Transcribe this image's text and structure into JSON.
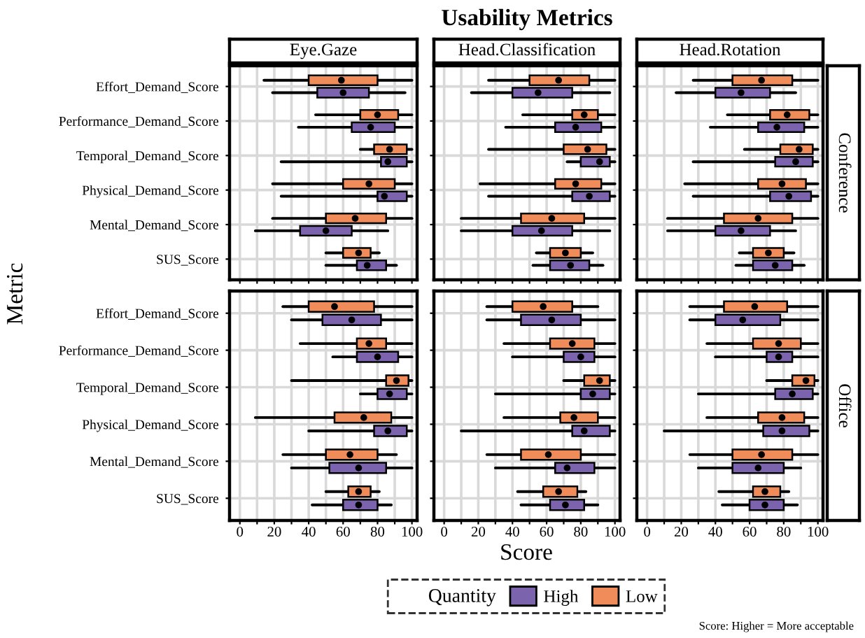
{
  "chart_data": [
    {
      "type": "box",
      "orientation": "horizontal",
      "subtitle": "Eye.Gaze",
      "ylabel": "Metric",
      "legend": "bottom",
      "legend_title": "Quantity",
      "tick_labels": "y",
      "grid": true,
      "xlim": [
        -6,
        103
      ],
      "xticks": [
        0,
        {
          "value": 10,
          "label": null
        },
        20,
        {
          "value": 30,
          "label": null
        },
        40,
        {
          "value": 50,
          "label": null
        },
        60,
        {
          "value": 70,
          "label": null
        },
        80,
        {
          "value": 90,
          "label": null
        },
        100
      ],
      "categories": [
        "Effort_Demand_Score",
        "Performance_Demand_Score",
        "Temporal_Demand_Score",
        "Physical_Demand_Score",
        "Mental_Demand_Score",
        "SUS_Score"
      ],
      "series": [
        {
          "name": "High",
          "color": "#7b64ad",
          "boxes": [
            {
              "low": 19,
              "q1": 45,
              "median": 60,
              "q3": 75,
              "high": 96
            },
            {
              "low": 34,
              "q1": 65,
              "median": 76,
              "q3": 90,
              "high": 100
            },
            {
              "low": 24,
              "q1": 82,
              "median": 86,
              "q3": 97,
              "high": 100
            },
            {
              "low": 24,
              "q1": 80,
              "median": 84,
              "q3": 97,
              "high": 100
            },
            {
              "low": 9,
              "q1": 35,
              "median": 50,
              "q3": 65,
              "high": 86
            },
            {
              "low": 50,
              "q1": 68,
              "median": 74,
              "q3": 85,
              "high": 91
            }
          ]
        },
        {
          "name": "Low",
          "color": "#f08c5a",
          "boxes": [
            {
              "low": 14,
              "q1": 40,
              "median": 59,
              "q3": 80,
              "high": 100
            },
            {
              "low": 44,
              "q1": 70,
              "median": 80,
              "q3": 92,
              "high": 100
            },
            {
              "low": 70,
              "q1": 78,
              "median": 87,
              "q3": 97,
              "high": 100
            },
            {
              "low": 19,
              "q1": 60,
              "median": 75,
              "q3": 90,
              "high": 100
            },
            {
              "low": 19,
              "q1": 50,
              "median": 67,
              "q3": 85,
              "high": 100
            },
            {
              "low": 50,
              "q1": 60,
              "median": 69,
              "q3": 76,
              "high": 81
            }
          ]
        }
      ]
    },
    {
      "type": "box",
      "orientation": "horizontal",
      "title": "Usability Metrics",
      "subtitle": "Head.Classification",
      "tick_labels": false,
      "grid": true,
      "xlim": [
        -6,
        103
      ],
      "xticks": [
        0,
        {
          "value": 10,
          "label": null
        },
        20,
        {
          "value": 30,
          "label": null
        },
        40,
        {
          "value": 50,
          "label": null
        },
        60,
        {
          "value": 70,
          "label": null
        },
        80,
        {
          "value": 90,
          "label": null
        },
        100
      ],
      "categories": [
        null,
        null,
        null,
        null,
        null,
        null
      ],
      "series": [
        {
          "color": "#7b64ad",
          "boxes": [
            {
              "low": 16,
              "q1": 40,
              "median": 55,
              "q3": 75,
              "high": 97
            },
            {
              "low": 36,
              "q1": 65,
              "median": 77,
              "q3": 92,
              "high": 100
            },
            {
              "low": 72,
              "q1": 80,
              "median": 91,
              "q3": 97,
              "high": 100
            },
            {
              "low": 26,
              "q1": 75,
              "median": 85,
              "q3": 97,
              "high": 100
            },
            {
              "low": 10,
              "q1": 40,
              "median": 57,
              "q3": 75,
              "high": 97
            },
            {
              "low": 52,
              "q1": 62,
              "median": 74,
              "q3": 85,
              "high": 93
            }
          ]
        },
        {
          "color": "#f08c5a",
          "boxes": [
            {
              "low": 26,
              "q1": 50,
              "median": 67,
              "q3": 85,
              "high": 100
            },
            {
              "low": 46,
              "q1": 75,
              "median": 82,
              "q3": 90,
              "high": 100
            },
            {
              "low": 26,
              "q1": 70,
              "median": 84,
              "q3": 95,
              "high": 100
            },
            {
              "low": 21,
              "q1": 65,
              "median": 77,
              "q3": 92,
              "high": 100
            },
            {
              "low": 10,
              "q1": 45,
              "median": 63,
              "q3": 82,
              "high": 100
            },
            {
              "low": 54,
              "q1": 62,
              "median": 71,
              "q3": 80,
              "high": 87
            }
          ]
        }
      ]
    },
    {
      "type": "box",
      "orientation": "horizontal",
      "subtitle": "Head.Rotation",
      "annotations": [
        "Conference"
      ],
      "tick_labels": false,
      "grid": true,
      "xlim": [
        -6,
        103
      ],
      "xticks": [
        0,
        {
          "value": 10,
          "label": null
        },
        20,
        {
          "value": 30,
          "label": null
        },
        40,
        {
          "value": 50,
          "label": null
        },
        60,
        {
          "value": 70,
          "label": null
        },
        80,
        {
          "value": 90,
          "label": null
        },
        100
      ],
      "categories": [
        null,
        null,
        null,
        null,
        null,
        null
      ],
      "series": [
        {
          "color": "#7b64ad",
          "boxes": [
            {
              "low": 17,
              "q1": 40,
              "median": 55,
              "q3": 72,
              "high": 87
            },
            {
              "low": 37,
              "q1": 65,
              "median": 76,
              "q3": 92,
              "high": 100
            },
            {
              "low": 27,
              "q1": 75,
              "median": 87,
              "q3": 97,
              "high": 100
            },
            {
              "low": 27,
              "q1": 72,
              "median": 83,
              "q3": 96,
              "high": 100
            },
            {
              "low": 12,
              "q1": 40,
              "median": 55,
              "q3": 72,
              "high": 87
            },
            {
              "low": 52,
              "q1": 62,
              "median": 75,
              "q3": 85,
              "high": 92
            }
          ]
        },
        {
          "color": "#f08c5a",
          "boxes": [
            {
              "low": 27,
              "q1": 50,
              "median": 67,
              "q3": 85,
              "high": 100
            },
            {
              "low": 47,
              "q1": 72,
              "median": 82,
              "q3": 95,
              "high": 100
            },
            {
              "low": 57,
              "q1": 78,
              "median": 89,
              "q3": 97,
              "high": 100
            },
            {
              "low": 22,
              "q1": 65,
              "median": 79,
              "q3": 93,
              "high": 100
            },
            {
              "low": 12,
              "q1": 45,
              "median": 65,
              "q3": 85,
              "high": 100
            },
            {
              "low": 54,
              "q1": 62,
              "median": 71,
              "q3": 80,
              "high": 86
            }
          ]
        }
      ]
    },
    {
      "type": "box",
      "orientation": "horizontal",
      "grid": true,
      "xlim": [
        -6,
        103
      ],
      "xticks": [
        0,
        {
          "value": 10,
          "label": null
        },
        20,
        {
          "value": 30,
          "label": null
        },
        40,
        {
          "value": 50,
          "label": null
        },
        60,
        {
          "value": 70,
          "label": null
        },
        80,
        {
          "value": 90,
          "label": null
        },
        100
      ],
      "categories": [
        "Effort_Demand_Score",
        "Performance_Demand_Score",
        "Temporal_Demand_Score",
        "Physical_Demand_Score",
        "Mental_Demand_Score",
        "SUS_Score"
      ],
      "series": [
        {
          "color": "#7b64ad",
          "boxes": [
            {
              "low": 30,
              "q1": 48,
              "median": 65,
              "q3": 82,
              "high": 100
            },
            {
              "low": 54,
              "q1": 68,
              "median": 80,
              "q3": 92,
              "high": 100
            },
            {
              "low": 70,
              "q1": 80,
              "median": 87,
              "q3": 97,
              "high": 100
            },
            {
              "low": 40,
              "q1": 78,
              "median": 86,
              "q3": 97,
              "high": 100
            },
            {
              "low": 30,
              "q1": 52,
              "median": 69,
              "q3": 85,
              "high": 100
            },
            {
              "low": 42,
              "q1": 60,
              "median": 69,
              "q3": 80,
              "high": 88
            }
          ]
        },
        {
          "color": "#f08c5a",
          "boxes": [
            {
              "low": 25,
              "q1": 40,
              "median": 55,
              "q3": 78,
              "high": 100
            },
            {
              "low": 35,
              "q1": 68,
              "median": 75,
              "q3": 85,
              "high": 100
            },
            {
              "low": 30,
              "q1": 85,
              "median": 91,
              "q3": 98,
              "high": 100
            },
            {
              "low": 9,
              "q1": 55,
              "median": 72,
              "q3": 88,
              "high": 100
            },
            {
              "low": 25,
              "q1": 50,
              "median": 64,
              "q3": 80,
              "high": 91
            },
            {
              "low": 50,
              "q1": 63,
              "median": 69,
              "q3": 76,
              "high": 81
            }
          ]
        }
      ]
    },
    {
      "type": "box",
      "orientation": "horizontal",
      "xlabel": "Score",
      "tick_labels": "x",
      "grid": true,
      "xlim": [
        -6,
        103
      ],
      "xticks": [
        0,
        {
          "value": 10,
          "label": null
        },
        20,
        {
          "value": 30,
          "label": null
        },
        40,
        {
          "value": 50,
          "label": null
        },
        60,
        {
          "value": 70,
          "label": null
        },
        80,
        {
          "value": 90,
          "label": null
        },
        100
      ],
      "categories": [
        null,
        null,
        null,
        null,
        null,
        null
      ],
      "series": [
        {
          "color": "#7b64ad",
          "boxes": [
            {
              "low": 25,
              "q1": 45,
              "median": 63,
              "q3": 80,
              "high": 100
            },
            {
              "low": 40,
              "q1": 70,
              "median": 80,
              "q3": 88,
              "high": 100
            },
            {
              "low": 30,
              "q1": 80,
              "median": 87,
              "q3": 97,
              "high": 100
            },
            {
              "low": 10,
              "q1": 75,
              "median": 82,
              "q3": 97,
              "high": 100
            },
            {
              "low": 30,
              "q1": 65,
              "median": 72,
              "q3": 88,
              "high": 100
            },
            {
              "low": 45,
              "q1": 62,
              "median": 71,
              "q3": 82,
              "high": 90
            }
          ]
        },
        {
          "color": "#f08c5a",
          "boxes": [
            {
              "low": 25,
              "q1": 40,
              "median": 58,
              "q3": 75,
              "high": 90
            },
            {
              "low": 35,
              "q1": 62,
              "median": 75,
              "q3": 88,
              "high": 100
            },
            {
              "low": 70,
              "q1": 82,
              "median": 91,
              "q3": 97,
              "high": 100
            },
            {
              "low": 35,
              "q1": 68,
              "median": 76,
              "q3": 90,
              "high": 100
            },
            {
              "low": 25,
              "q1": 45,
              "median": 61,
              "q3": 80,
              "high": 100
            },
            {
              "low": 43,
              "q1": 58,
              "median": 67,
              "q3": 78,
              "high": 83
            }
          ]
        }
      ]
    },
    {
      "type": "box",
      "orientation": "horizontal",
      "annotations": [
        "Office",
        "Score: Higher = More acceptable"
      ],
      "tick_labels": "x",
      "grid": true,
      "xlim": [
        -6,
        103
      ],
      "xticks": [
        0,
        {
          "value": 10,
          "label": null
        },
        20,
        {
          "value": 30,
          "label": null
        },
        40,
        {
          "value": 50,
          "label": null
        },
        60,
        {
          "value": 70,
          "label": null
        },
        80,
        {
          "value": 90,
          "label": null
        },
        100
      ],
      "categories": [
        null,
        null,
        null,
        null,
        null,
        null
      ],
      "series": [
        {
          "color": "#7b64ad",
          "boxes": [
            {
              "low": 25,
              "q1": 40,
              "median": 56,
              "q3": 78,
              "high": 100
            },
            {
              "low": 40,
              "q1": 70,
              "median": 77,
              "q3": 85,
              "high": 100
            },
            {
              "low": 30,
              "q1": 75,
              "median": 85,
              "q3": 97,
              "high": 100
            },
            {
              "low": 10,
              "q1": 68,
              "median": 79,
              "q3": 95,
              "high": 100
            },
            {
              "low": 30,
              "q1": 50,
              "median": 65,
              "q3": 80,
              "high": 90
            },
            {
              "low": 44,
              "q1": 60,
              "median": 69,
              "q3": 80,
              "high": 88
            }
          ]
        },
        {
          "color": "#f08c5a",
          "boxes": [
            {
              "low": 25,
              "q1": 45,
              "median": 63,
              "q3": 82,
              "high": 100
            },
            {
              "low": 35,
              "q1": 62,
              "median": 77,
              "q3": 90,
              "high": 100
            },
            {
              "low": 70,
              "q1": 85,
              "median": 93,
              "q3": 98,
              "high": 100
            },
            {
              "low": 35,
              "q1": 65,
              "median": 79,
              "q3": 92,
              "high": 100
            },
            {
              "low": 25,
              "q1": 50,
              "median": 67,
              "q3": 85,
              "high": 100
            },
            {
              "low": 42,
              "q1": 62,
              "median": 69,
              "q3": 78,
              "high": 83
            }
          ]
        }
      ]
    }
  ]
}
